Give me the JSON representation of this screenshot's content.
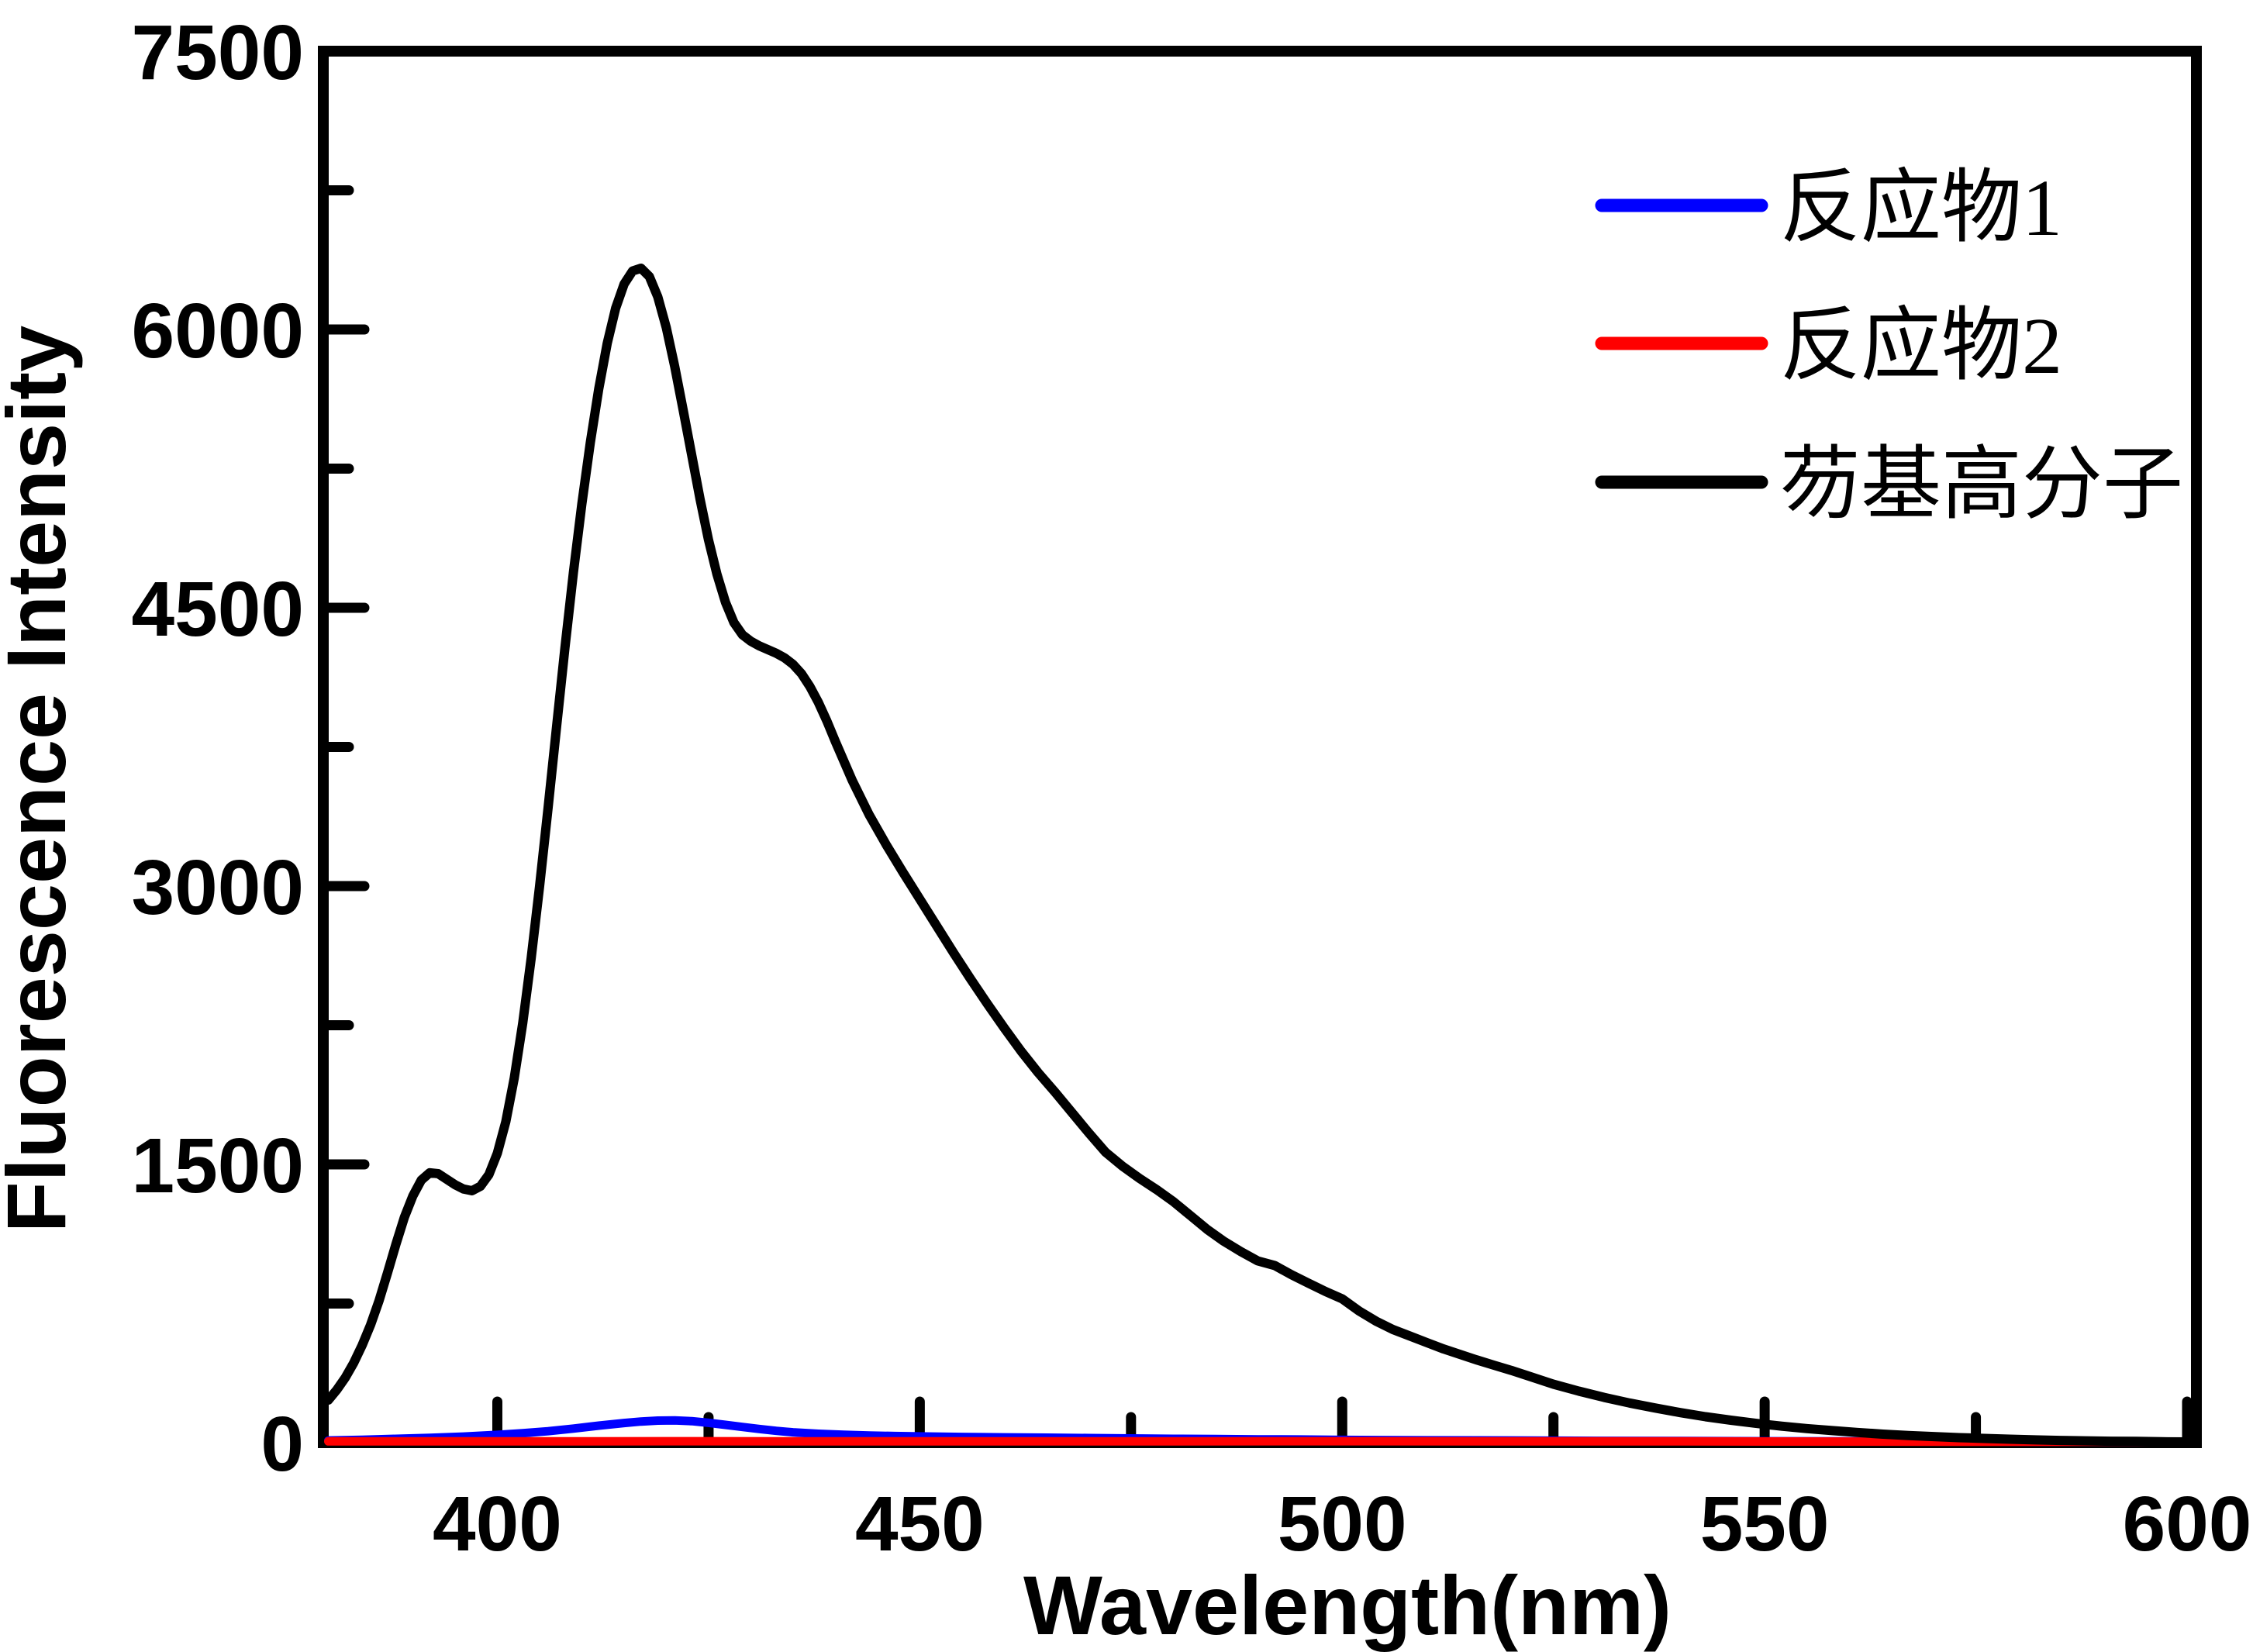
{
  "figure": {
    "background_color": "#FFFFFF",
    "frame_color": "#000000"
  },
  "chart_data": {
    "type": "line",
    "title": "",
    "xlabel": "Wavelength(nm)",
    "ylabel": "Fluorescence Intensity",
    "xlim": [
      379.4,
      601.1
    ],
    "ylim": [
      0,
      7500
    ],
    "grid": false,
    "legend_position": "upper right",
    "x_major_ticks": [
      400,
      450,
      500,
      550,
      600
    ],
    "x_minor_ticks": [
      425,
      475,
      525,
      575
    ],
    "x_tick_labels": [
      "400",
      "450",
      "500",
      "550",
      "600"
    ],
    "y_major_ticks": [
      0,
      1500,
      3000,
      4500,
      6000,
      7500
    ],
    "y_minor_ticks": [
      750,
      2250,
      3750,
      5250,
      6750
    ],
    "y_tick_labels": [
      "0",
      "1500",
      "3000",
      "4500",
      "6000",
      "7500"
    ],
    "series": [
      {
        "name": "反应物1",
        "key": "reactant-1",
        "color": "#0000FF",
        "line_width": 11,
        "points": [
          [
            380,
            12
          ],
          [
            384,
            16
          ],
          [
            388,
            21
          ],
          [
            392,
            26
          ],
          [
            396,
            33
          ],
          [
            400,
            42
          ],
          [
            403,
            51
          ],
          [
            406,
            62
          ],
          [
            409,
            76
          ],
          [
            412,
            92
          ],
          [
            415,
            106
          ],
          [
            417,
            114
          ],
          [
            419,
            119
          ],
          [
            421,
            120
          ],
          [
            423,
            116
          ],
          [
            425,
            107
          ],
          [
            427,
            96
          ],
          [
            429,
            85
          ],
          [
            431,
            74
          ],
          [
            433,
            64
          ],
          [
            435,
            56
          ],
          [
            438,
            48
          ],
          [
            441,
            43
          ],
          [
            444,
            39
          ],
          [
            447,
            36
          ],
          [
            450,
            34
          ],
          [
            455,
            31
          ],
          [
            460,
            29
          ],
          [
            465,
            27
          ],
          [
            470,
            25
          ],
          [
            475,
            23
          ],
          [
            480,
            21
          ],
          [
            485,
            20
          ],
          [
            490,
            18
          ],
          [
            495,
            17
          ],
          [
            500,
            15
          ],
          [
            510,
            13
          ],
          [
            520,
            12
          ],
          [
            530,
            10
          ],
          [
            540,
            9
          ],
          [
            550,
            8
          ],
          [
            560,
            7
          ],
          [
            570,
            7
          ],
          [
            580,
            6
          ],
          [
            590,
            6
          ],
          [
            600,
            5
          ]
        ]
      },
      {
        "name": "反应物2",
        "key": "reactant-2",
        "color": "#FF0000",
        "line_width": 11,
        "points": [
          [
            380,
            7
          ],
          [
            400,
            7
          ],
          [
            420,
            8
          ],
          [
            440,
            7
          ],
          [
            460,
            7
          ],
          [
            480,
            7
          ],
          [
            500,
            8
          ],
          [
            520,
            7
          ],
          [
            540,
            7
          ],
          [
            560,
            6
          ],
          [
            580,
            5
          ],
          [
            600,
            5
          ]
        ]
      },
      {
        "name": "芴基高分子",
        "key": "fluorene-polymer",
        "color": "#000000",
        "line_width": 12,
        "points": [
          [
            380,
            230
          ],
          [
            381,
            285
          ],
          [
            382,
            350
          ],
          [
            383,
            430
          ],
          [
            384,
            525
          ],
          [
            385,
            635
          ],
          [
            386,
            765
          ],
          [
            387,
            915
          ],
          [
            388,
            1070
          ],
          [
            389,
            1215
          ],
          [
            390,
            1330
          ],
          [
            391,
            1415
          ],
          [
            392,
            1455
          ],
          [
            393,
            1450
          ],
          [
            394,
            1420
          ],
          [
            395,
            1390
          ],
          [
            396,
            1367
          ],
          [
            397,
            1358
          ],
          [
            398,
            1382
          ],
          [
            399,
            1445
          ],
          [
            400,
            1560
          ],
          [
            401,
            1730
          ],
          [
            402,
            1965
          ],
          [
            403,
            2260
          ],
          [
            404,
            2610
          ],
          [
            405,
            3000
          ],
          [
            406,
            3420
          ],
          [
            407,
            3855
          ],
          [
            408,
            4285
          ],
          [
            409,
            4690
          ],
          [
            410,
            5060
          ],
          [
            411,
            5390
          ],
          [
            412,
            5680
          ],
          [
            413,
            5925
          ],
          [
            414,
            6115
          ],
          [
            415,
            6245
          ],
          [
            416,
            6315
          ],
          [
            417,
            6330
          ],
          [
            418,
            6285
          ],
          [
            419,
            6175
          ],
          [
            420,
            6010
          ],
          [
            421,
            5800
          ],
          [
            422,
            5565
          ],
          [
            423,
            5325
          ],
          [
            424,
            5085
          ],
          [
            425,
            4865
          ],
          [
            426,
            4680
          ],
          [
            427,
            4530
          ],
          [
            428,
            4420
          ],
          [
            429,
            4355
          ],
          [
            430,
            4320
          ],
          [
            431,
            4295
          ],
          [
            432,
            4275
          ],
          [
            433,
            4255
          ],
          [
            434,
            4230
          ],
          [
            435,
            4195
          ],
          [
            436,
            4145
          ],
          [
            437,
            4075
          ],
          [
            438,
            3990
          ],
          [
            439,
            3890
          ],
          [
            440,
            3780
          ],
          [
            442,
            3570
          ],
          [
            444,
            3385
          ],
          [
            446,
            3225
          ],
          [
            448,
            3075
          ],
          [
            450,
            2930
          ],
          [
            452,
            2785
          ],
          [
            454,
            2640
          ],
          [
            456,
            2500
          ],
          [
            458,
            2365
          ],
          [
            460,
            2235
          ],
          [
            462,
            2110
          ],
          [
            464,
            1995
          ],
          [
            466,
            1890
          ],
          [
            468,
            1780
          ],
          [
            470,
            1670
          ],
          [
            472,
            1565
          ],
          [
            474,
            1490
          ],
          [
            476,
            1425
          ],
          [
            478,
            1365
          ],
          [
            480,
            1300
          ],
          [
            482,
            1225
          ],
          [
            484,
            1150
          ],
          [
            486,
            1085
          ],
          [
            488,
            1030
          ],
          [
            490,
            980
          ],
          [
            492,
            955
          ],
          [
            494,
            905
          ],
          [
            496,
            860
          ],
          [
            498,
            815
          ],
          [
            500,
            775
          ],
          [
            502,
            710
          ],
          [
            504,
            655
          ],
          [
            506,
            610
          ],
          [
            508,
            575
          ],
          [
            510,
            540
          ],
          [
            512,
            505
          ],
          [
            514,
            475
          ],
          [
            516,
            445
          ],
          [
            518,
            417
          ],
          [
            520,
            390
          ],
          [
            522,
            360
          ],
          [
            525,
            315
          ],
          [
            528,
            278
          ],
          [
            531,
            244
          ],
          [
            534,
            214
          ],
          [
            537,
            187
          ],
          [
            540,
            162
          ],
          [
            543,
            140
          ],
          [
            546,
            121
          ],
          [
            549,
            104
          ],
          [
            552,
            89
          ],
          [
            555,
            76
          ],
          [
            558,
            65
          ],
          [
            561,
            55
          ],
          [
            564,
            46
          ],
          [
            567,
            39
          ],
          [
            570,
            33
          ],
          [
            573,
            27
          ],
          [
            576,
            23
          ],
          [
            579,
            19
          ],
          [
            582,
            15
          ],
          [
            585,
            12
          ],
          [
            588,
            10
          ],
          [
            591,
            8
          ],
          [
            594,
            7
          ],
          [
            597,
            5
          ],
          [
            600,
            4
          ]
        ]
      }
    ]
  }
}
